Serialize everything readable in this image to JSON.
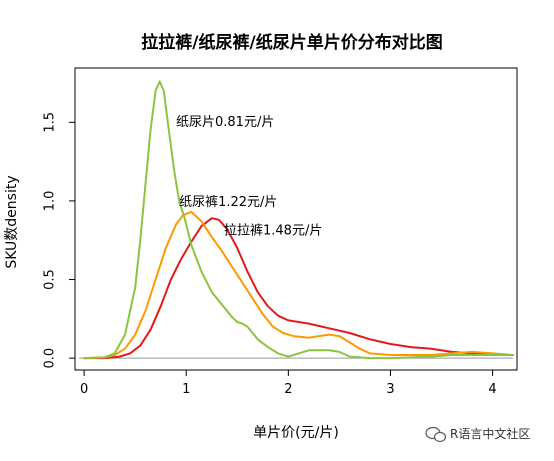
{
  "chart_data": {
    "type": "line",
    "title": "拉拉裤/纸尿裤/纸尿片单片价分布对比图",
    "xlabel": "单片价(元/片)",
    "ylabel": "SKU数density",
    "xlim": [
      -0.05,
      4.2
    ],
    "ylim": [
      -0.05,
      1.82
    ],
    "x_ticks": [
      0,
      1,
      2,
      3,
      4
    ],
    "y_ticks": [
      0.0,
      0.5,
      1.0,
      1.5
    ],
    "x_tick_labels": [
      "0",
      "1",
      "2",
      "3",
      "4"
    ],
    "y_tick_labels": [
      "0.0",
      "0.5",
      "1.0",
      "1.5"
    ],
    "baseline": 0,
    "grid": false,
    "legend": "none",
    "series": [
      {
        "key": "pants",
        "color": "#e31a1c",
        "points": [
          [
            0,
            0
          ],
          [
            0.2,
            0
          ],
          [
            0.35,
            0.01
          ],
          [
            0.45,
            0.03
          ],
          [
            0.55,
            0.08
          ],
          [
            0.65,
            0.18
          ],
          [
            0.75,
            0.33
          ],
          [
            0.85,
            0.5
          ],
          [
            0.95,
            0.63
          ],
          [
            1.05,
            0.74
          ],
          [
            1.15,
            0.84
          ],
          [
            1.25,
            0.89
          ],
          [
            1.32,
            0.88
          ],
          [
            1.4,
            0.82
          ],
          [
            1.5,
            0.7
          ],
          [
            1.6,
            0.55
          ],
          [
            1.7,
            0.42
          ],
          [
            1.8,
            0.33
          ],
          [
            1.9,
            0.27
          ],
          [
            2.0,
            0.24
          ],
          [
            2.2,
            0.22
          ],
          [
            2.4,
            0.19
          ],
          [
            2.6,
            0.16
          ],
          [
            2.8,
            0.12
          ],
          [
            3.0,
            0.09
          ],
          [
            3.2,
            0.07
          ],
          [
            3.4,
            0.06
          ],
          [
            3.6,
            0.04
          ],
          [
            3.8,
            0.03
          ],
          [
            4.0,
            0.02
          ],
          [
            4.2,
            0.02
          ]
        ]
      },
      {
        "key": "diapers",
        "color": "#ff9900",
        "points": [
          [
            0,
            0
          ],
          [
            0.2,
            0.005
          ],
          [
            0.3,
            0.02
          ],
          [
            0.4,
            0.06
          ],
          [
            0.5,
            0.15
          ],
          [
            0.6,
            0.3
          ],
          [
            0.7,
            0.5
          ],
          [
            0.8,
            0.7
          ],
          [
            0.9,
            0.85
          ],
          [
            0.97,
            0.91
          ],
          [
            1.05,
            0.93
          ],
          [
            1.15,
            0.87
          ],
          [
            1.25,
            0.77
          ],
          [
            1.35,
            0.68
          ],
          [
            1.45,
            0.58
          ],
          [
            1.55,
            0.48
          ],
          [
            1.65,
            0.38
          ],
          [
            1.75,
            0.28
          ],
          [
            1.85,
            0.2
          ],
          [
            1.95,
            0.16
          ],
          [
            2.05,
            0.14
          ],
          [
            2.2,
            0.13
          ],
          [
            2.3,
            0.14
          ],
          [
            2.4,
            0.15
          ],
          [
            2.5,
            0.14
          ],
          [
            2.6,
            0.1
          ],
          [
            2.7,
            0.06
          ],
          [
            2.8,
            0.03
          ],
          [
            3.0,
            0.02
          ],
          [
            3.4,
            0.02
          ],
          [
            3.6,
            0.03
          ],
          [
            3.8,
            0.04
          ],
          [
            4.0,
            0.03
          ],
          [
            4.2,
            0.02
          ]
        ]
      },
      {
        "key": "pads",
        "color": "#8bc53f",
        "points": [
          [
            0,
            0
          ],
          [
            0.2,
            0.005
          ],
          [
            0.3,
            0.03
          ],
          [
            0.4,
            0.15
          ],
          [
            0.5,
            0.45
          ],
          [
            0.55,
            0.75
          ],
          [
            0.6,
            1.1
          ],
          [
            0.65,
            1.45
          ],
          [
            0.7,
            1.7
          ],
          [
            0.74,
            1.76
          ],
          [
            0.78,
            1.7
          ],
          [
            0.82,
            1.5
          ],
          [
            0.88,
            1.2
          ],
          [
            0.93,
            1.0
          ],
          [
            0.98,
            0.9
          ],
          [
            1.05,
            0.72
          ],
          [
            1.15,
            0.55
          ],
          [
            1.25,
            0.42
          ],
          [
            1.35,
            0.34
          ],
          [
            1.45,
            0.26
          ],
          [
            1.5,
            0.23
          ],
          [
            1.55,
            0.22
          ],
          [
            1.6,
            0.2
          ],
          [
            1.7,
            0.12
          ],
          [
            1.8,
            0.07
          ],
          [
            1.9,
            0.03
          ],
          [
            2.0,
            0.01
          ],
          [
            2.1,
            0.03
          ],
          [
            2.2,
            0.05
          ],
          [
            2.3,
            0.05
          ],
          [
            2.4,
            0.05
          ],
          [
            2.5,
            0.04
          ],
          [
            2.6,
            0.01
          ],
          [
            2.8,
            0.0
          ],
          [
            3.0,
            0.0
          ],
          [
            3.4,
            0.01
          ],
          [
            3.6,
            0.02
          ],
          [
            3.8,
            0.02
          ],
          [
            4.0,
            0.02
          ],
          [
            4.2,
            0.02
          ]
        ]
      }
    ],
    "annotations": [
      {
        "key": "pads",
        "text": "纸尿片0.81元/片",
        "x": 0.9,
        "y": 1.5
      },
      {
        "key": "diapers",
        "text": "纸尿裤1.22元/片",
        "x": 0.93,
        "y": 0.99
      },
      {
        "key": "pants",
        "text": "拉拉裤1.48元/片",
        "x": 1.37,
        "y": 0.81
      }
    ]
  },
  "watermark": "R语言中文社区",
  "colors": {
    "axis": "#000000",
    "baseline": "#999999",
    "watermark_icon": "#555555"
  }
}
